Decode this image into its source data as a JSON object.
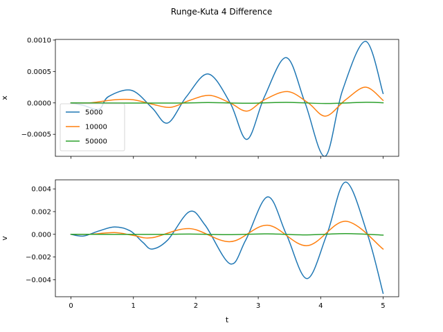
{
  "title": "Runge-Kuta 4 Difference",
  "colors": {
    "5000": "#1f77b4",
    "10000": "#ff7f0e",
    "50000": "#2ca02c"
  },
  "chart_data": [
    {
      "type": "line",
      "ylabel": "x",
      "xlabel": "",
      "xlim": [
        -0.25,
        5.25
      ],
      "ylim": [
        -0.00085,
        0.00101
      ],
      "yticks": [
        -0.0005,
        0.0,
        0.0005,
        0.001
      ],
      "ytick_labels": [
        "−0.0005",
        "0.0000",
        "0.0005",
        "0.0010"
      ],
      "xticks": [
        0,
        1,
        2,
        3,
        4,
        5
      ],
      "show_xtick_labels": false,
      "legend": {
        "placement": "center-left",
        "entries": [
          "5000",
          "10000",
          "50000"
        ]
      },
      "series": [
        {
          "name": "5000",
          "color": "#1f77b4",
          "points": [
            [
              0,
              0
            ],
            [
              0.2,
              -4e-05
            ],
            [
              0.45,
              -0.0001
            ],
            [
              0.6,
              0.0001
            ],
            [
              0.97,
              0.0002
            ],
            [
              1.3,
              -8e-05
            ],
            [
              1.55,
              -0.00032
            ],
            [
              1.85,
              0.0001
            ],
            [
              2.2,
              0.00046
            ],
            [
              2.55,
              0.0
            ],
            [
              2.82,
              -0.00058
            ],
            [
              3.1,
              0.0001
            ],
            [
              3.45,
              0.00072
            ],
            [
              3.75,
              0.0
            ],
            [
              4.07,
              -0.00085
            ],
            [
              4.35,
              0.0002
            ],
            [
              4.72,
              0.00098
            ],
            [
              5.0,
              0.00015
            ]
          ]
        },
        {
          "name": "10000",
          "color": "#ff7f0e",
          "points": [
            [
              0,
              0
            ],
            [
              0.3,
              0.0
            ],
            [
              0.7,
              5e-05
            ],
            [
              1.0,
              5e-05
            ],
            [
              1.3,
              -2e-05
            ],
            [
              1.6,
              -7e-05
            ],
            [
              1.9,
              4e-05
            ],
            [
              2.22,
              0.00012
            ],
            [
              2.55,
              0.0
            ],
            [
              2.82,
              -0.00013
            ],
            [
              3.1,
              5e-05
            ],
            [
              3.47,
              0.00018
            ],
            [
              3.8,
              0.0
            ],
            [
              4.08,
              -0.00021
            ],
            [
              4.4,
              5e-05
            ],
            [
              4.72,
              0.00025
            ],
            [
              5.0,
              4e-05
            ]
          ]
        },
        {
          "name": "50000",
          "color": "#2ca02c",
          "points": [
            [
              0,
              0
            ],
            [
              1.6,
              -3e-06
            ],
            [
              2.2,
              5e-06
            ],
            [
              2.82,
              -6e-06
            ],
            [
              3.45,
              8e-06
            ],
            [
              4.08,
              -9e-06
            ],
            [
              4.72,
              1e-05
            ],
            [
              5.0,
              2e-06
            ]
          ]
        }
      ]
    },
    {
      "type": "line",
      "ylabel": "v",
      "xlabel": "t",
      "xlim": [
        -0.25,
        5.25
      ],
      "ylim": [
        -0.0055,
        0.0048
      ],
      "yticks": [
        -0.004,
        -0.002,
        0.0,
        0.002,
        0.004
      ],
      "ytick_labels": [
        "−0.004",
        "−0.002",
        "0.000",
        "0.002",
        "0.004"
      ],
      "xticks": [
        0,
        1,
        2,
        3,
        4,
        5
      ],
      "xtick_labels": [
        "0",
        "1",
        "2",
        "3",
        "4",
        "5"
      ],
      "show_xtick_labels": true,
      "series": [
        {
          "name": "5000",
          "color": "#1f77b4",
          "points": [
            [
              0,
              0
            ],
            [
              0.2,
              -0.00015
            ],
            [
              0.45,
              0.0003
            ],
            [
              0.7,
              0.00065
            ],
            [
              0.95,
              0.0003
            ],
            [
              1.15,
              -0.0007
            ],
            [
              1.3,
              -0.0013
            ],
            [
              1.55,
              -0.0005
            ],
            [
              1.9,
              0.002
            ],
            [
              2.15,
              0.0008
            ],
            [
              2.55,
              -0.0026
            ],
            [
              2.8,
              -0.0005
            ],
            [
              3.15,
              0.0033
            ],
            [
              3.45,
              0.0
            ],
            [
              3.78,
              -0.0039
            ],
            [
              4.1,
              0.0
            ],
            [
              4.4,
              0.0046
            ],
            [
              4.75,
              0.0
            ],
            [
              5.0,
              -0.0052
            ]
          ]
        },
        {
          "name": "10000",
          "color": "#ff7f0e",
          "points": [
            [
              0,
              0
            ],
            [
              0.3,
              0.0
            ],
            [
              0.7,
              0.00015
            ],
            [
              1.0,
              -0.0001
            ],
            [
              1.3,
              -0.0003
            ],
            [
              1.9,
              0.0005
            ],
            [
              2.55,
              -0.00065
            ],
            [
              3.15,
              0.0008
            ],
            [
              3.78,
              -0.001
            ],
            [
              4.4,
              0.00115
            ],
            [
              5.0,
              -0.0013
            ]
          ]
        },
        {
          "name": "50000",
          "color": "#2ca02c",
          "points": [
            [
              0,
              0
            ],
            [
              1.3,
              -1e-05
            ],
            [
              1.9,
              2e-05
            ],
            [
              2.55,
              -3e-05
            ],
            [
              3.15,
              4e-05
            ],
            [
              3.78,
              -5e-05
            ],
            [
              4.4,
              6e-05
            ],
            [
              5.0,
              -7e-05
            ]
          ]
        }
      ]
    }
  ]
}
